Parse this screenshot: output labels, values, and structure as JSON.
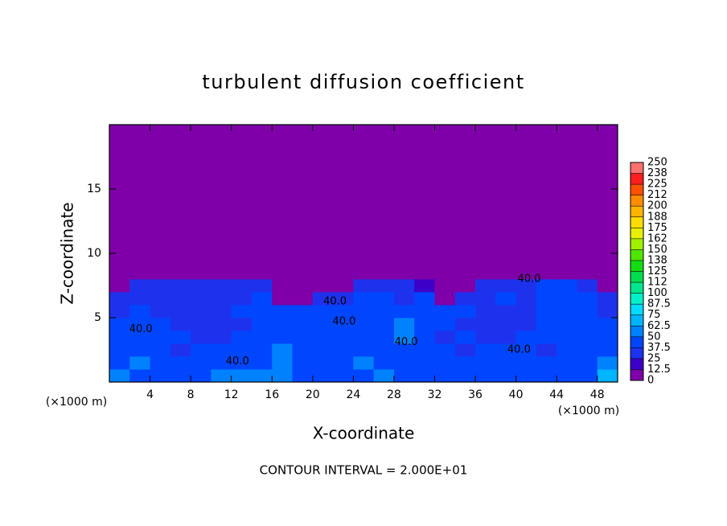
{
  "chart_data": {
    "type": "heatmap",
    "title": "turbulent diffusion coefficient",
    "xlabel": "X-coordinate",
    "ylabel": "Z-coordinate",
    "x_unit_label": "(×1000 m)",
    "footer": "CONTOUR INTERVAL = 2.000E+01",
    "xlim": [
      0,
      50
    ],
    "ylim": [
      0,
      20
    ],
    "xticks": [
      4,
      8,
      12,
      16,
      20,
      24,
      28,
      32,
      36,
      40,
      44,
      48
    ],
    "yticks": [
      5,
      10,
      15
    ],
    "xbins": [
      0,
      2,
      4,
      6,
      8,
      10,
      12,
      14,
      16,
      18,
      20,
      22,
      24,
      26,
      28,
      30,
      32,
      34,
      36,
      38,
      40,
      42,
      44,
      46,
      48,
      50
    ],
    "ybins": [
      0,
      1,
      2,
      3,
      4,
      5,
      6,
      7,
      8,
      9,
      20
    ],
    "z": [
      [
        55,
        45,
        40,
        42,
        45,
        50,
        55,
        60,
        50,
        45,
        48,
        40,
        45,
        50,
        38,
        42,
        45,
        40,
        48,
        42,
        45,
        40,
        45,
        42,
        70
      ],
      [
        40,
        50,
        45,
        40,
        38,
        40,
        45,
        48,
        50,
        45,
        40,
        45,
        50,
        48,
        40,
        42,
        45,
        38,
        40,
        45,
        42,
        40,
        38,
        42,
        55
      ],
      [
        42,
        38,
        40,
        35,
        38,
        42,
        40,
        45,
        50,
        48,
        42,
        45,
        40,
        42,
        38,
        40,
        38,
        35,
        38,
        40,
        38,
        36,
        40,
        42,
        45
      ],
      [
        40,
        45,
        40,
        38,
        36,
        35,
        38,
        40,
        42,
        45,
        42,
        48,
        45,
        40,
        50,
        38,
        36,
        38,
        36,
        35,
        38,
        40,
        45,
        42,
        40
      ],
      [
        38,
        42,
        40,
        36,
        35,
        35,
        36,
        38,
        40,
        42,
        40,
        45,
        42,
        48,
        52,
        40,
        38,
        36,
        35,
        34,
        36,
        38,
        40,
        45,
        38
      ],
      [
        36,
        38,
        35,
        34,
        35,
        36,
        38,
        40,
        38,
        42,
        38,
        45,
        40,
        42,
        45,
        42,
        38,
        40,
        36,
        35,
        36,
        38,
        42,
        40,
        36
      ],
      [
        30,
        35,
        36,
        35,
        34,
        35,
        36,
        38,
        10,
        8,
        30,
        36,
        38,
        40,
        36,
        42,
        8,
        32,
        36,
        38,
        36,
        38,
        40,
        38,
        30
      ],
      [
        12,
        32,
        35,
        36,
        36,
        35,
        34,
        30,
        5,
        3,
        5,
        10,
        30,
        35,
        36,
        20,
        3,
        5,
        30,
        35,
        36,
        38,
        38,
        30,
        8
      ],
      [
        3,
        3,
        3,
        3,
        3,
        3,
        2,
        2,
        2,
        2,
        2,
        2,
        2,
        2,
        2,
        2,
        2,
        2,
        3,
        3,
        8,
        5,
        3,
        2,
        2
      ],
      [
        0,
        0,
        0,
        0,
        0,
        0,
        0,
        0,
        0,
        0,
        0,
        0,
        0,
        0,
        0,
        0,
        0,
        0,
        0,
        0,
        0,
        0,
        0,
        0,
        0
      ]
    ],
    "annotations": [
      {
        "text": "40.0",
        "x": 3.1,
        "y": 4.1
      },
      {
        "text": "40.0",
        "x": 12.6,
        "y": 1.6
      },
      {
        "text": "40.0",
        "x": 22.2,
        "y": 6.25
      },
      {
        "text": "40.0",
        "x": 23.1,
        "y": 4.7
      },
      {
        "text": "40.0",
        "x": 29.2,
        "y": 3.1
      },
      {
        "text": "40.0",
        "x": 40.3,
        "y": 2.5
      },
      {
        "text": "40.0",
        "x": 41.3,
        "y": 8.0
      }
    ],
    "colorbar": {
      "ticks": [
        0,
        12.5,
        25,
        37.5,
        50,
        62.5,
        75,
        87.5,
        100,
        {
          "value": 112.5,
          "label": "112"
        },
        125,
        {
          "value": 137.5,
          "label": "138"
        },
        150,
        {
          "value": 162.5,
          "label": "162"
        },
        175,
        {
          "value": 187.5,
          "label": "188"
        },
        200,
        {
          "value": 212.5,
          "label": "212"
        },
        225,
        {
          "value": 237.5,
          "label": "238"
        },
        250
      ],
      "colors": [
        "#7f00a8",
        "#3c00c8",
        "#1e32ee",
        "#0046ff",
        "#0082ff",
        "#00b4ff",
        "#00dcff",
        "#00f0c8",
        "#00e68c",
        "#00dc50",
        "#14dc14",
        "#50e600",
        "#a0f000",
        "#e6f000",
        "#ffdc00",
        "#ffb400",
        "#ff8c00",
        "#ff5000",
        "#ff1e1e",
        "#ff7070"
      ]
    }
  }
}
